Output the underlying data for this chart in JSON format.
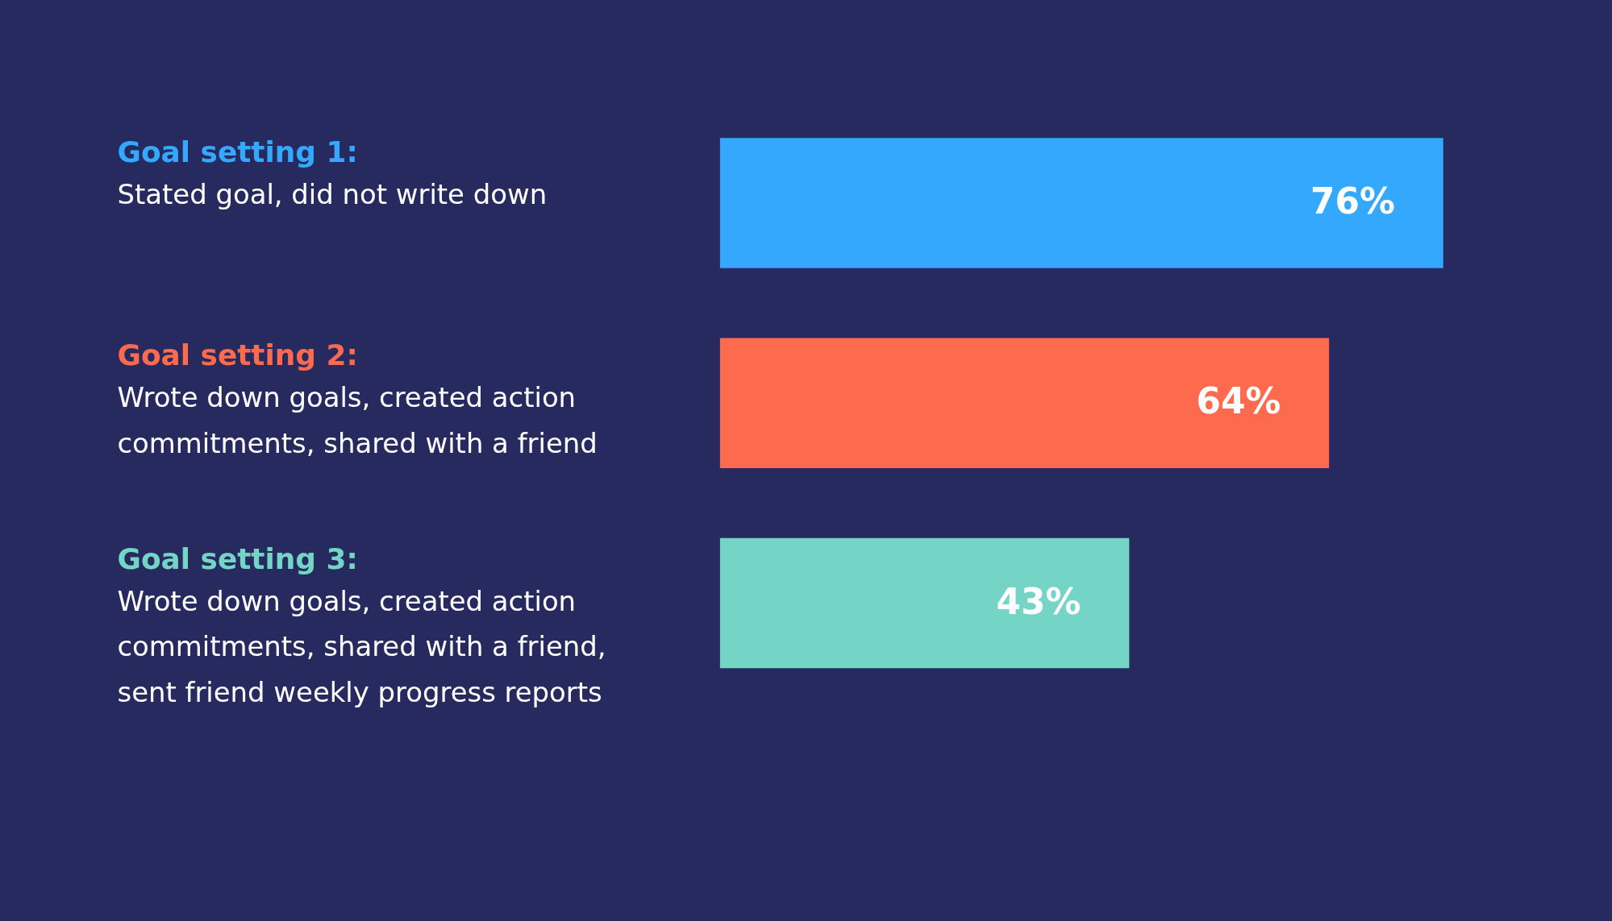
{
  "chart_data": {
    "type": "bar",
    "orientation": "horizontal",
    "categories": [
      "Goal setting 1:\nStated goal, did not write down",
      "Goal setting 2:\nWrote down goals, created action\ncommitments, shared with a friend",
      "Goal setting 3:\nWrote down goals, created action\ncommitments, shared with a friend,\nsent friend weekly progress reports"
    ],
    "values": [
      76,
      64,
      43
    ],
    "colors": [
      "#33a8fd",
      "#fe6a4d",
      "#74d5c6"
    ],
    "value_labels": [
      "76%",
      "64%",
      "43%"
    ]
  }
}
